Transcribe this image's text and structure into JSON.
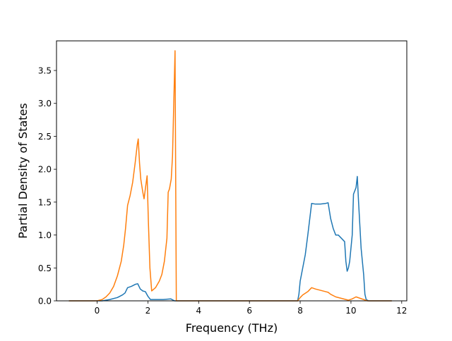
{
  "chart_data": {
    "type": "line",
    "title": "",
    "xlabel": "Frequency (THz)",
    "ylabel": "Partial Density of States",
    "xlim": [
      -1.6,
      12.2
    ],
    "ylim": [
      0,
      3.95
    ],
    "xticks": [
      0,
      2,
      4,
      6,
      8,
      10,
      12
    ],
    "yticks": [
      0.0,
      0.5,
      1.0,
      1.5,
      2.0,
      2.5,
      3.0,
      3.5
    ],
    "xtick_labels": [
      "0",
      "2",
      "4",
      "6",
      "8",
      "10",
      "12"
    ],
    "ytick_labels": [
      "0.0",
      "0.5",
      "1.0",
      "1.5",
      "2.0",
      "2.5",
      "3.0",
      "3.5"
    ],
    "grid": false,
    "legend": null,
    "series": [
      {
        "color": "#1f77b4",
        "points": [
          [
            -1.1,
            0.0
          ],
          [
            0.0,
            0.0
          ],
          [
            0.2,
            0.0
          ],
          [
            0.5,
            0.02
          ],
          [
            0.8,
            0.05
          ],
          [
            1.0,
            0.09
          ],
          [
            1.1,
            0.12
          ],
          [
            1.2,
            0.2
          ],
          [
            1.35,
            0.22
          ],
          [
            1.5,
            0.25
          ],
          [
            1.6,
            0.26
          ],
          [
            1.7,
            0.18
          ],
          [
            1.8,
            0.15
          ],
          [
            1.9,
            0.14
          ],
          [
            2.0,
            0.07
          ],
          [
            2.1,
            0.02
          ],
          [
            2.3,
            0.02
          ],
          [
            2.6,
            0.02
          ],
          [
            2.9,
            0.03
          ],
          [
            3.05,
            0.0
          ],
          [
            3.2,
            0.0
          ],
          [
            5.0,
            0.0
          ],
          [
            7.9,
            0.0
          ],
          [
            7.95,
            0.1
          ],
          [
            8.0,
            0.3
          ],
          [
            8.1,
            0.5
          ],
          [
            8.2,
            0.7
          ],
          [
            8.3,
            1.0
          ],
          [
            8.45,
            1.48
          ],
          [
            8.6,
            1.47
          ],
          [
            8.8,
            1.47
          ],
          [
            9.0,
            1.48
          ],
          [
            9.1,
            1.49
          ],
          [
            9.2,
            1.25
          ],
          [
            9.3,
            1.1
          ],
          [
            9.4,
            1.0
          ],
          [
            9.5,
            1.0
          ],
          [
            9.6,
            0.96
          ],
          [
            9.75,
            0.9
          ],
          [
            9.8,
            0.6
          ],
          [
            9.85,
            0.45
          ],
          [
            9.9,
            0.5
          ],
          [
            9.95,
            0.6
          ],
          [
            10.05,
            1.0
          ],
          [
            10.1,
            1.62
          ],
          [
            10.2,
            1.72
          ],
          [
            10.25,
            1.89
          ],
          [
            10.3,
            1.5
          ],
          [
            10.4,
            0.8
          ],
          [
            10.5,
            0.4
          ],
          [
            10.55,
            0.1
          ],
          [
            10.6,
            0.02
          ],
          [
            10.7,
            0.0
          ],
          [
            11.6,
            0.0
          ]
        ]
      },
      {
        "color": "#ff7f0e",
        "points": [
          [
            -1.1,
            0.0
          ],
          [
            0.0,
            0.0
          ],
          [
            0.2,
            0.02
          ],
          [
            0.35,
            0.06
          ],
          [
            0.5,
            0.12
          ],
          [
            0.65,
            0.22
          ],
          [
            0.8,
            0.38
          ],
          [
            0.95,
            0.6
          ],
          [
            1.05,
            0.85
          ],
          [
            1.12,
            1.1
          ],
          [
            1.2,
            1.45
          ],
          [
            1.3,
            1.6
          ],
          [
            1.4,
            1.8
          ],
          [
            1.5,
            2.1
          ],
          [
            1.58,
            2.37
          ],
          [
            1.62,
            2.46
          ],
          [
            1.67,
            2.1
          ],
          [
            1.72,
            1.85
          ],
          [
            1.8,
            1.65
          ],
          [
            1.85,
            1.55
          ],
          [
            1.9,
            1.7
          ],
          [
            1.97,
            1.9
          ],
          [
            2.02,
            1.2
          ],
          [
            2.08,
            0.5
          ],
          [
            2.15,
            0.15
          ],
          [
            2.3,
            0.2
          ],
          [
            2.45,
            0.3
          ],
          [
            2.55,
            0.4
          ],
          [
            2.65,
            0.6
          ],
          [
            2.75,
            0.95
          ],
          [
            2.8,
            1.65
          ],
          [
            2.85,
            1.7
          ],
          [
            2.92,
            1.85
          ],
          [
            2.97,
            2.2
          ],
          [
            3.02,
            3.0
          ],
          [
            3.07,
            3.8
          ],
          [
            3.1,
            1.5
          ],
          [
            3.12,
            0.0
          ],
          [
            3.3,
            0.0
          ],
          [
            5.0,
            0.0
          ],
          [
            7.9,
            0.0
          ],
          [
            8.0,
            0.05
          ],
          [
            8.1,
            0.09
          ],
          [
            8.3,
            0.14
          ],
          [
            8.45,
            0.2
          ],
          [
            8.6,
            0.18
          ],
          [
            8.8,
            0.16
          ],
          [
            9.0,
            0.14
          ],
          [
            9.1,
            0.13
          ],
          [
            9.2,
            0.1
          ],
          [
            9.4,
            0.06
          ],
          [
            9.6,
            0.04
          ],
          [
            9.8,
            0.02
          ],
          [
            9.9,
            0.01
          ],
          [
            10.05,
            0.03
          ],
          [
            10.2,
            0.06
          ],
          [
            10.35,
            0.04
          ],
          [
            10.5,
            0.02
          ],
          [
            10.65,
            0.0
          ],
          [
            11.6,
            0.0
          ]
        ]
      }
    ]
  }
}
